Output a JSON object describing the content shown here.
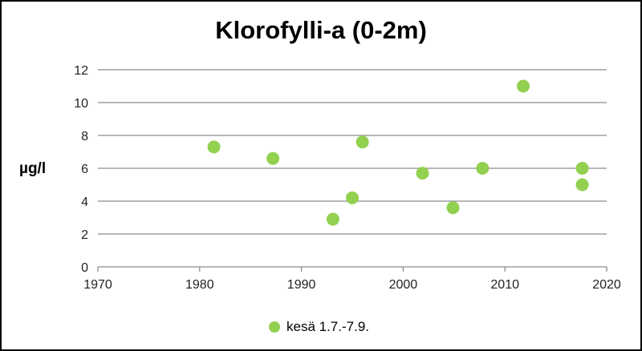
{
  "chart_data": {
    "type": "scatter",
    "title": "Klorofylli-a (0-2m)",
    "xlabel": "",
    "ylabel": "µg/l",
    "xlim": [
      1970,
      2020
    ],
    "ylim": [
      0,
      12
    ],
    "xticks": [
      1970,
      1980,
      1990,
      2000,
      2010,
      2020
    ],
    "yticks": [
      0,
      2,
      4,
      6,
      8,
      10,
      12
    ],
    "grid": "horizontal",
    "legend_position": "bottom",
    "color": "#92d050",
    "series": [
      {
        "name": "kesä 1.7.-7.9.",
        "x": [
          1981.4,
          1987.2,
          1993.1,
          1995.0,
          1996.0,
          2001.9,
          2004.9,
          2007.8,
          2011.8,
          2017.6,
          2017.6
        ],
        "y": [
          7.3,
          6.6,
          2.9,
          4.2,
          7.6,
          5.7,
          3.6,
          6.0,
          11.0,
          6.0,
          5.0
        ]
      }
    ]
  }
}
